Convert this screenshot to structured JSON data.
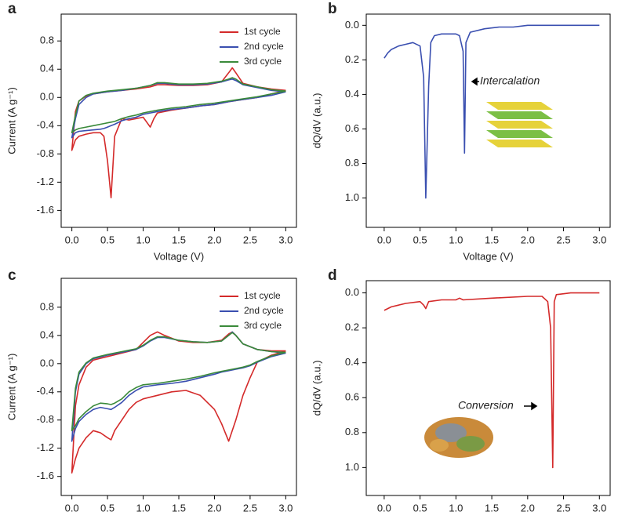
{
  "chart_data": [
    {
      "type": "line",
      "label": "a",
      "x_label": "Voltage (V)",
      "y_label": "Current (A g⁻¹)",
      "xlim": [
        -0.15,
        3.15
      ],
      "xticks": [
        {
          "value": 0,
          "label": "0.0"
        },
        0.5,
        {
          "value": 1,
          "label": "1.0"
        },
        1.5,
        {
          "value": 2,
          "label": "2.0"
        },
        2.5,
        {
          "value": 3,
          "label": "3.0"
        }
      ],
      "ylim": [
        -1.84,
        1.18
      ],
      "yticks": [
        -1.6,
        -1.2,
        -0.8,
        -0.4,
        {
          "value": 0,
          "label": "0.0"
        },
        0.4,
        0.8
      ],
      "legend": "upper right",
      "x": [
        3.0,
        2.8,
        2.6,
        2.4,
        2.2,
        2.0,
        1.8,
        1.6,
        1.4,
        1.2,
        1.15,
        1.1,
        1.05,
        1.0,
        0.9,
        0.8,
        0.7,
        0.6,
        0.55,
        0.5,
        0.45,
        0.4,
        0.3,
        0.2,
        0.1,
        0.05,
        0.0,
        0.05,
        0.1,
        0.2,
        0.3,
        0.5,
        0.7,
        0.9,
        1.1,
        1.2,
        1.3,
        1.5,
        1.7,
        1.9,
        2.1,
        2.2,
        2.25,
        2.3,
        2.4,
        2.6,
        2.8,
        3.0
      ],
      "series": [
        {
          "name": "1st cycle",
          "color": "#d42a2a",
          "values": [
            0.1,
            0.05,
            0.0,
            -0.03,
            -0.06,
            -0.1,
            -0.12,
            -0.15,
            -0.18,
            -0.22,
            -0.3,
            -0.42,
            -0.35,
            -0.28,
            -0.3,
            -0.32,
            -0.3,
            -0.55,
            -1.42,
            -0.9,
            -0.55,
            -0.5,
            -0.5,
            -0.52,
            -0.55,
            -0.6,
            -0.75,
            -0.2,
            -0.05,
            0.02,
            0.05,
            0.08,
            0.1,
            0.12,
            0.15,
            0.18,
            0.18,
            0.17,
            0.17,
            0.18,
            0.22,
            0.35,
            0.42,
            0.35,
            0.2,
            0.15,
            0.12,
            0.1
          ]
        },
        {
          "name": "2nd cycle",
          "color": "#3a4fb0",
          "values": [
            0.08,
            0.03,
            0.0,
            -0.03,
            -0.06,
            -0.1,
            -0.12,
            -0.15,
            -0.17,
            -0.2,
            -0.21,
            -0.22,
            -0.23,
            -0.24,
            -0.28,
            -0.3,
            -0.33,
            -0.38,
            -0.4,
            -0.42,
            -0.44,
            -0.45,
            -0.46,
            -0.47,
            -0.48,
            -0.5,
            -0.57,
            -0.3,
            -0.1,
            0.0,
            0.05,
            0.08,
            0.1,
            0.13,
            0.17,
            0.2,
            0.2,
            0.18,
            0.18,
            0.19,
            0.22,
            0.25,
            0.26,
            0.24,
            0.18,
            0.14,
            0.1,
            0.08
          ]
        },
        {
          "name": "3rd cycle",
          "color": "#3a8a3a",
          "values": [
            0.09,
            0.05,
            0.01,
            -0.02,
            -0.05,
            -0.08,
            -0.1,
            -0.13,
            -0.15,
            -0.18,
            -0.19,
            -0.2,
            -0.21,
            -0.22,
            -0.25,
            -0.27,
            -0.3,
            -0.34,
            -0.35,
            -0.36,
            -0.37,
            -0.38,
            -0.4,
            -0.42,
            -0.44,
            -0.46,
            -0.5,
            -0.25,
            -0.05,
            0.03,
            0.06,
            0.09,
            0.11,
            0.13,
            0.17,
            0.21,
            0.21,
            0.19,
            0.19,
            0.2,
            0.23,
            0.26,
            0.28,
            0.26,
            0.19,
            0.15,
            0.11,
            0.09
          ]
        }
      ]
    },
    {
      "type": "line",
      "label": "b",
      "x_label": "Voltage (V)",
      "y_label": "dQ/dV (a.u.)",
      "annotation": "Intercalation",
      "xlim": [
        -0.25,
        3.15
      ],
      "xticks": [
        {
          "value": 0,
          "label": "0.0"
        },
        0.5,
        {
          "value": 1,
          "label": "1.0"
        },
        1.5,
        {
          "value": 2,
          "label": "2.0"
        },
        2.5,
        {
          "value": 3,
          "label": "3.0"
        }
      ],
      "ylim": [
        -0.065,
        1.17
      ],
      "y_inverted": true,
      "yticks": [
        {
          "value": 0,
          "label": "0.0"
        },
        0.2,
        0.4,
        0.6,
        0.8,
        {
          "value": 1,
          "label": "1.0"
        }
      ],
      "color": "#3a4fb0",
      "x": [
        0.0,
        0.05,
        0.1,
        0.2,
        0.3,
        0.4,
        0.5,
        0.55,
        0.58,
        0.62,
        0.65,
        0.7,
        0.8,
        0.9,
        1.0,
        1.05,
        1.1,
        1.12,
        1.14,
        1.2,
        1.4,
        1.6,
        1.8,
        2.0,
        2.5,
        3.0
      ],
      "values": [
        0.19,
        0.16,
        0.14,
        0.12,
        0.11,
        0.1,
        0.12,
        0.3,
        1.0,
        0.35,
        0.1,
        0.06,
        0.05,
        0.05,
        0.05,
        0.06,
        0.15,
        0.74,
        0.1,
        0.04,
        0.02,
        0.01,
        0.01,
        0.0,
        0.0,
        0.0
      ]
    },
    {
      "type": "line",
      "label": "c",
      "x_label": "Voltage (V)",
      "y_label": "Current (A g⁻¹)",
      "xlim": [
        -0.15,
        3.15
      ],
      "xticks": [
        {
          "value": 0,
          "label": "0.0"
        },
        0.5,
        {
          "value": 1,
          "label": "1.0"
        },
        1.5,
        {
          "value": 2,
          "label": "2.0"
        },
        2.5,
        {
          "value": 3,
          "label": "3.0"
        }
      ],
      "ylim": [
        -1.87,
        1.21
      ],
      "yticks": [
        -1.6,
        -1.2,
        -0.8,
        -0.4,
        {
          "value": 0,
          "label": "0.0"
        },
        0.4,
        0.8
      ],
      "legend": "upper right",
      "x": [
        3.0,
        2.8,
        2.6,
        2.5,
        2.4,
        2.3,
        2.2,
        2.1,
        2.0,
        1.8,
        1.6,
        1.4,
        1.2,
        1.0,
        0.9,
        0.8,
        0.7,
        0.6,
        0.55,
        0.5,
        0.4,
        0.3,
        0.2,
        0.1,
        0.05,
        0.0,
        0.05,
        0.1,
        0.2,
        0.3,
        0.5,
        0.7,
        0.9,
        1.0,
        1.1,
        1.2,
        1.3,
        1.5,
        1.7,
        1.9,
        2.1,
        2.2,
        2.25,
        2.3,
        2.4,
        2.6,
        2.8,
        3.0
      ],
      "series": [
        {
          "name": "1st cycle",
          "color": "#d42a2a",
          "values": [
            0.18,
            0.12,
            0.02,
            -0.2,
            -0.45,
            -0.8,
            -1.1,
            -0.85,
            -0.65,
            -0.45,
            -0.38,
            -0.4,
            -0.45,
            -0.5,
            -0.55,
            -0.65,
            -0.8,
            -0.95,
            -1.08,
            -1.05,
            -0.98,
            -0.95,
            -1.05,
            -1.2,
            -1.35,
            -1.55,
            -0.6,
            -0.3,
            -0.05,
            0.05,
            0.1,
            0.15,
            0.2,
            0.3,
            0.4,
            0.45,
            0.4,
            0.32,
            0.3,
            0.3,
            0.33,
            0.42,
            0.45,
            0.4,
            0.28,
            0.2,
            0.18,
            0.18
          ]
        },
        {
          "name": "2nd cycle",
          "color": "#3a4fb0",
          "values": [
            0.15,
            0.1,
            0.02,
            -0.03,
            -0.06,
            -0.08,
            -0.1,
            -0.12,
            -0.15,
            -0.2,
            -0.25,
            -0.28,
            -0.3,
            -0.33,
            -0.38,
            -0.45,
            -0.55,
            -0.62,
            -0.65,
            -0.64,
            -0.62,
            -0.65,
            -0.72,
            -0.82,
            -0.92,
            -1.1,
            -0.4,
            -0.15,
            0.0,
            0.07,
            0.12,
            0.16,
            0.2,
            0.25,
            0.32,
            0.37,
            0.37,
            0.33,
            0.31,
            0.3,
            0.32,
            0.4,
            0.45,
            0.4,
            0.28,
            0.2,
            0.17,
            0.15
          ]
        },
        {
          "name": "3rd cycle",
          "color": "#3a8a3a",
          "values": [
            0.16,
            0.11,
            0.03,
            -0.02,
            -0.05,
            -0.07,
            -0.09,
            -0.11,
            -0.13,
            -0.18,
            -0.22,
            -0.25,
            -0.28,
            -0.3,
            -0.34,
            -0.4,
            -0.5,
            -0.56,
            -0.58,
            -0.57,
            -0.56,
            -0.6,
            -0.68,
            -0.78,
            -0.88,
            -0.95,
            -0.35,
            -0.12,
            0.01,
            0.08,
            0.13,
            0.17,
            0.21,
            0.26,
            0.33,
            0.38,
            0.38,
            0.33,
            0.31,
            0.3,
            0.32,
            0.4,
            0.44,
            0.4,
            0.28,
            0.2,
            0.17,
            0.16
          ]
        }
      ]
    },
    {
      "type": "line",
      "label": "d",
      "x_label": "Voltage (V)",
      "y_label": "dQ/dV (a.u.)",
      "annotation": "Conversion",
      "xlim": [
        -0.25,
        3.15
      ],
      "xticks": [
        {
          "value": 0,
          "label": "0.0"
        },
        0.5,
        {
          "value": 1,
          "label": "1.0"
        },
        1.5,
        {
          "value": 2,
          "label": "2.0"
        },
        2.5,
        {
          "value": 3,
          "label": "3.0"
        }
      ],
      "ylim": [
        -0.07,
        1.16
      ],
      "y_inverted": true,
      "yticks": [
        {
          "value": 0,
          "label": "0.0"
        },
        0.2,
        0.4,
        0.6,
        0.8,
        {
          "value": 1,
          "label": "1.0"
        }
      ],
      "color": "#d42a2a",
      "x": [
        0.0,
        0.1,
        0.3,
        0.5,
        0.55,
        0.58,
        0.62,
        0.8,
        1.0,
        1.05,
        1.1,
        1.5,
        2.0,
        2.2,
        2.28,
        2.32,
        2.35,
        2.37,
        2.4,
        2.6,
        3.0
      ],
      "values": [
        0.1,
        0.08,
        0.06,
        0.05,
        0.07,
        0.09,
        0.05,
        0.04,
        0.04,
        0.03,
        0.04,
        0.03,
        0.02,
        0.02,
        0.05,
        0.2,
        1.0,
        0.05,
        0.01,
        0.0,
        0.0
      ]
    }
  ]
}
